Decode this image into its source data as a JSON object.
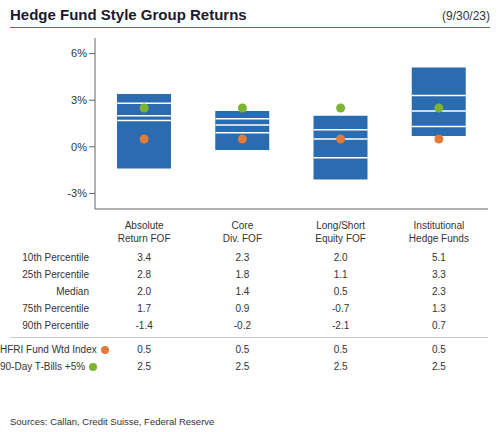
{
  "chart_data": {
    "type": "box",
    "title": "Hedge Fund Style Group Returns",
    "subtitle": "(9/30/23)",
    "categories": [
      "Absolute\nReturn FOF",
      "Core\nDiv. FOF",
      "Long/Short\nEquity FOF",
      "Institutional\nHedge Funds"
    ],
    "color": "#2B6CB0",
    "series": [
      {
        "name": "10th Percentile",
        "type": "range",
        "values": [
          3.4,
          2.3,
          2.0,
          5.1
        ],
        "value_labels": [
          "3.4",
          "2.3",
          "2.0",
          "5.1"
        ]
      },
      {
        "name": "25th Percentile",
        "type": "tick",
        "color": "white",
        "values": [
          2.8,
          1.8,
          1.1,
          3.3
        ],
        "value_labels": [
          "2.8",
          "1.8",
          "1.1",
          "3.3"
        ]
      },
      {
        "name": "Median",
        "type": "tick",
        "color": "white",
        "values": [
          2.0,
          1.4,
          0.5,
          2.3
        ],
        "value_labels": [
          "2.0",
          "1.4",
          "0.5",
          "2.3"
        ]
      },
      {
        "name": "75th Percentile",
        "type": "tick",
        "color": "white",
        "values": [
          1.7,
          0.9,
          -0.7,
          1.3
        ],
        "value_labels": [
          "1.7",
          "0.9",
          "-0.7",
          "1.3"
        ]
      },
      {
        "name": "90th Percentile",
        "type": "range",
        "values": [
          -1.4,
          -0.2,
          -2.1,
          0.7
        ],
        "value_labels": [
          "-1.4",
          "-0.2",
          "-2.1",
          "0.7"
        ]
      },
      {
        "name": "HFRI Fund Wtd Index",
        "type": "scatter",
        "color": "#E07B39",
        "values": [
          0.5,
          0.5,
          0.5,
          0.5
        ],
        "value_labels": [
          "0.5",
          "0.5",
          "0.5",
          "0.5"
        ]
      },
      {
        "name": "90-Day T-Bills +5%",
        "type": "scatter",
        "color": "#7EB233",
        "values": [
          2.5,
          2.5,
          2.5,
          2.5
        ],
        "value_labels": [
          "2.5",
          "2.5",
          "2.5",
          "2.5"
        ]
      }
    ],
    "ylim": [
      -4.0,
      7.0
    ],
    "yticks": [
      {
        "value": -3,
        "label": "-3%"
      },
      {
        "value": 0,
        "label": "0%"
      },
      {
        "value": 3,
        "label": "3%"
      },
      {
        "value": 6,
        "label": "6%"
      }
    ],
    "grid": false,
    "source": "Sources: Callan, Credit Suisse, Federal Reserve"
  }
}
